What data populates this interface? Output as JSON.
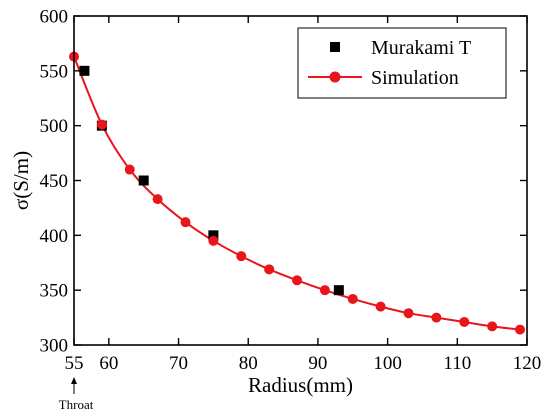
{
  "chart_data": {
    "type": "scatter",
    "title": "",
    "xlabel": "Radius(mm)",
    "ylabel": "σ(S/m)",
    "xlim": [
      55,
      120
    ],
    "ylim": [
      300,
      600
    ],
    "x_ticks": [
      55,
      60,
      70,
      80,
      90,
      100,
      110,
      120
    ],
    "y_ticks": [
      300,
      350,
      400,
      450,
      500,
      550,
      600
    ],
    "grid": false,
    "legend_position": "top-right",
    "annotation": "Throat",
    "annotation_x": 55,
    "series": [
      {
        "name": "Murakami T",
        "kind": "scatter",
        "marker": "square",
        "color": "#000000",
        "x": [
          56.5,
          59,
          65,
          75,
          93
        ],
        "y": [
          550,
          500,
          450,
          400,
          350
        ]
      },
      {
        "name": "Simulation",
        "kind": "line+markers",
        "marker": "circle",
        "color": "#e8161a",
        "x": [
          55,
          59,
          63,
          67,
          71,
          75,
          79,
          83,
          87,
          91,
          95,
          99,
          103,
          107,
          111,
          115,
          119
        ],
        "y": [
          563,
          501,
          460,
          433,
          412,
          395,
          381,
          369,
          359,
          350,
          342,
          335,
          329,
          325,
          321,
          317,
          314
        ]
      }
    ]
  }
}
